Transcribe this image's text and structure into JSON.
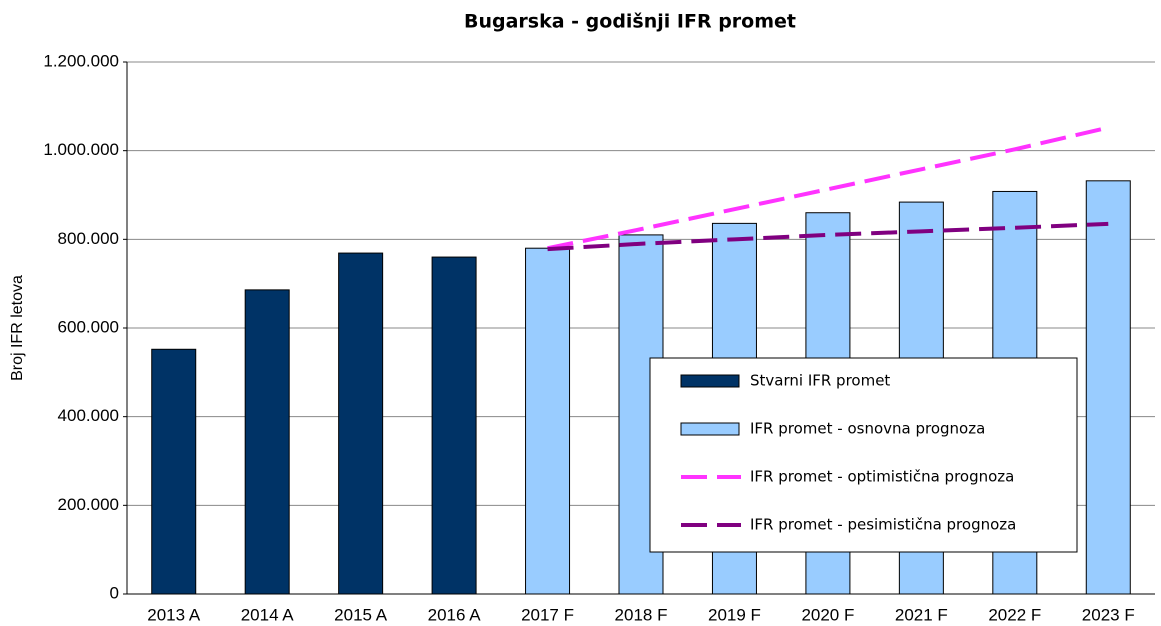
{
  "chart_data": {
    "type": "bar",
    "title": "Bugarska - godišnji IFR promet",
    "y_label": "Broj IFR letova",
    "categories": [
      "2013 A",
      "2014 A",
      "2015 A",
      "2016 A",
      "2017 F",
      "2018 F",
      "2019 F",
      "2020 F",
      "2021 F",
      "2022 F",
      "2023 F"
    ],
    "series": [
      {
        "name": "Stvarni IFR promet",
        "type": "bar",
        "color": "#003366",
        "values": [
          552000,
          686000,
          769000,
          760000,
          null,
          null,
          null,
          null,
          null,
          null,
          null
        ]
      },
      {
        "name": "IFR promet - osnovna prognoza",
        "type": "bar",
        "color": "#99ccff",
        "values": [
          null,
          null,
          null,
          null,
          780000,
          810000,
          836000,
          860000,
          884000,
          908000,
          932000
        ]
      },
      {
        "name": "IFR promet - optimistična prognoza",
        "type": "line",
        "color": "#ff33ff",
        "values": [
          null,
          null,
          null,
          null,
          780000,
          823000,
          868000,
          913000,
          958000,
          1003000,
          1052000
        ]
      },
      {
        "name": "IFR promet - pesimistična prognoza",
        "type": "line",
        "color": "#800080",
        "values": [
          null,
          null,
          null,
          null,
          778000,
          790000,
          800000,
          810000,
          818000,
          826000,
          835000
        ]
      }
    ],
    "ylim": [
      0,
      1200000
    ],
    "yticks": [
      0,
      {
        "value": 200000,
        "label": "200.000"
      },
      {
        "value": 400000,
        "label": "400.000"
      },
      {
        "value": 600000,
        "label": "600.000"
      },
      {
        "value": 800000,
        "label": "800.000"
      },
      {
        "value": 1000000,
        "label": "1.000.000"
      },
      {
        "value": 1200000,
        "label": "1.200.000"
      }
    ],
    "grid": true
  }
}
